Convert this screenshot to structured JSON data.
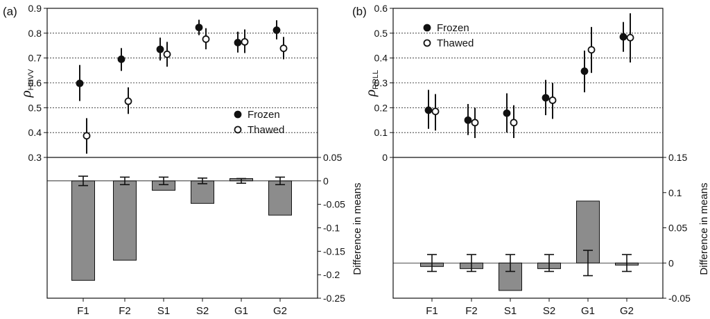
{
  "chart_data": [
    {
      "panel": "(a)",
      "type": "scatter",
      "ylabel_symbol": "ρ",
      "ylabel_sub": "HHVV",
      "ylim": [
        0.3,
        0.9
      ],
      "yticks": [
        "0.3",
        "0.4",
        "0.5",
        "0.6",
        "0.7",
        "0.8",
        "0.9"
      ],
      "gridlines": [
        0.4,
        0.5,
        0.6,
        0.7,
        0.8
      ],
      "categories": [
        "F1",
        "F2",
        "S1",
        "S2",
        "G1",
        "G2"
      ],
      "legend": {
        "position": "right",
        "frozen": "Frozen",
        "thawed": "Thawed"
      },
      "series": [
        {
          "name": "Frozen",
          "marker": "filled",
          "values": [
            0.598,
            0.695,
            0.735,
            0.823,
            0.762,
            0.812
          ],
          "err_low": [
            0.527,
            0.648,
            0.69,
            0.792,
            0.722,
            0.775
          ],
          "err_high": [
            0.672,
            0.74,
            0.782,
            0.854,
            0.806,
            0.852
          ]
        },
        {
          "name": "Thawed",
          "marker": "open",
          "values": [
            0.387,
            0.526,
            0.715,
            0.776,
            0.765,
            0.739
          ],
          "err_low": [
            0.315,
            0.475,
            0.665,
            0.735,
            0.72,
            0.695
          ],
          "err_high": [
            0.458,
            0.582,
            0.765,
            0.82,
            0.815,
            0.785
          ]
        }
      ]
    },
    {
      "panel": "(a)",
      "type": "bar",
      "ylabel": "Difference in means",
      "ylim": [
        -0.25,
        0.05
      ],
      "yticks": [
        "-0.25",
        "-0.2",
        "-0.15",
        "-0.1",
        "-0.05",
        "0",
        "0.05"
      ],
      "categories": [
        "F1",
        "F2",
        "S1",
        "S2",
        "G1",
        "G2"
      ],
      "values": [
        -0.212,
        -0.169,
        -0.02,
        -0.048,
        0.005,
        -0.073
      ],
      "err_low": [
        -0.01,
        -0.008,
        -0.008,
        -0.006,
        -0.005,
        -0.008
      ],
      "err_high": [
        0.01,
        0.008,
        0.008,
        0.006,
        0.005,
        0.008
      ]
    },
    {
      "panel": "(b)",
      "type": "scatter",
      "ylabel_symbol": "ρ",
      "ylabel_sub": "RRLL",
      "ylim": [
        0,
        0.6
      ],
      "yticks": [
        "0",
        "0.1",
        "0.2",
        "0.3",
        "0.4",
        "0.5",
        "0.6"
      ],
      "gridlines": [
        0.1,
        0.2,
        0.3,
        0.4,
        0.5
      ],
      "categories": [
        "F1",
        "F2",
        "S1",
        "S2",
        "G1",
        "G2"
      ],
      "legend": {
        "position": "top-left",
        "frozen": "Frozen",
        "thawed": "Thawed"
      },
      "series": [
        {
          "name": "Frozen",
          "marker": "filled",
          "values": [
            0.19,
            0.15,
            0.178,
            0.24,
            0.347,
            0.485
          ],
          "err_low": [
            0.115,
            0.09,
            0.1,
            0.17,
            0.262,
            0.425
          ],
          "err_high": [
            0.272,
            0.215,
            0.258,
            0.312,
            0.43,
            0.545
          ]
        },
        {
          "name": "Thawed",
          "marker": "open",
          "values": [
            0.185,
            0.14,
            0.14,
            0.23,
            0.433,
            0.482
          ],
          "err_low": [
            0.108,
            0.078,
            0.078,
            0.155,
            0.34,
            0.382
          ],
          "err_high": [
            0.255,
            0.2,
            0.21,
            0.3,
            0.525,
            0.58
          ]
        }
      ]
    },
    {
      "panel": "(b)",
      "type": "bar",
      "ylabel": "Difference in means",
      "ylim": [
        -0.05,
        0.15
      ],
      "yticks": [
        "-0.05",
        "0",
        "0.05",
        "0.1",
        "0.15"
      ],
      "categories": [
        "F1",
        "F2",
        "S1",
        "S2",
        "G1",
        "G2"
      ],
      "values": [
        -0.005,
        -0.008,
        -0.039,
        -0.008,
        0.088,
        -0.003
      ],
      "err_low": [
        -0.012,
        -0.012,
        -0.012,
        -0.012,
        -0.018,
        -0.012
      ],
      "err_high": [
        0.012,
        0.012,
        0.012,
        0.012,
        0.018,
        0.012
      ]
    }
  ]
}
